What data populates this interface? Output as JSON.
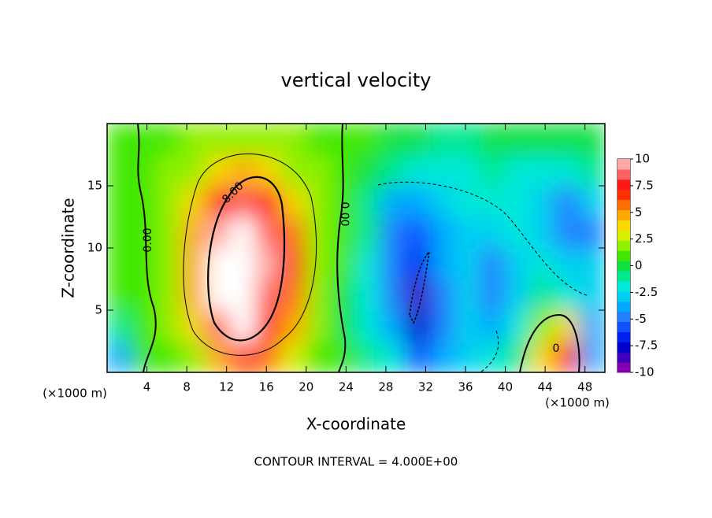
{
  "chart_data": {
    "type": "heatmap",
    "title": "vertical velocity",
    "x_label": "X-coordinate",
    "y_label": "Z-coordinate",
    "x_unit_left": "(×1000 m)",
    "x_unit_right": "(×1000 m)",
    "footer": "CONTOUR INTERVAL = 4.000E+00",
    "contour_labels": [
      "0.00",
      "8.00",
      "0.00",
      "0"
    ],
    "x": [
      1.25,
      3.75,
      6.25,
      8.75,
      11.25,
      13.75,
      16.25,
      18.75,
      21.25,
      23.75,
      26.25,
      28.75,
      31.25,
      33.75,
      36.25,
      38.75,
      41.25,
      43.75,
      46.25,
      48.75
    ],
    "y": [
      1.25,
      3.75,
      6.25,
      8.75,
      11.25,
      13.75,
      16.25,
      18.75
    ],
    "values": [
      [
        -4,
        0.5,
        1,
        2,
        5,
        7,
        6,
        3,
        1,
        0.5,
        -1,
        -2,
        -6,
        -4,
        -3,
        -2,
        -1,
        4,
        8,
        -4
      ],
      [
        -1,
        0.5,
        1.5,
        4,
        9,
        11,
        8,
        5,
        1.5,
        0,
        -2,
        -4,
        -8,
        -5,
        -3,
        -4,
        -2,
        2,
        4,
        -4
      ],
      [
        0.5,
        1,
        1.5,
        5,
        11,
        12,
        9,
        6,
        1.5,
        0,
        -2,
        -5,
        -9,
        -5,
        -3,
        -5,
        -3,
        -1,
        -2,
        -3
      ],
      [
        0.5,
        1,
        1.5,
        5,
        11,
        12,
        10,
        7,
        2,
        0.5,
        -2,
        -5,
        -7,
        -4,
        -3,
        -5,
        -3,
        -2,
        -3,
        -3
      ],
      [
        0.5,
        1,
        1.5,
        5,
        10,
        12,
        9,
        6,
        2,
        0.5,
        -1,
        -5,
        -6,
        -4,
        -3,
        -3,
        -2,
        -3,
        -5,
        -5
      ],
      [
        0.5,
        1,
        1.5,
        4,
        8,
        9,
        8,
        4,
        1.5,
        0.5,
        -1,
        -4,
        -4,
        -3,
        -2,
        -2,
        -2,
        -3,
        -5,
        -3
      ],
      [
        1,
        1,
        1.5,
        2,
        4,
        5,
        4,
        2,
        1.5,
        0.5,
        -0.5,
        -1,
        -2,
        -2,
        -2,
        -1.5,
        -2,
        -2,
        -2,
        -1
      ],
      [
        1,
        1,
        1,
        1.5,
        2,
        2,
        2,
        1.5,
        1,
        0.5,
        0.5,
        0,
        -0.5,
        -1,
        -1,
        -0.5,
        -0.5,
        -0.5,
        0,
        0
      ]
    ],
    "xlim": [
      0,
      50
    ],
    "ylim": [
      0,
      20
    ],
    "xticks": [
      4,
      8,
      12,
      16,
      20,
      24,
      28,
      32,
      36,
      40,
      44,
      48
    ],
    "yticks": [
      5,
      10,
      15
    ],
    "clim": [
      -10,
      10
    ],
    "cticks": [
      10,
      7.5,
      5,
      2.5,
      0,
      -2.5,
      -5,
      -7.5,
      -10
    ],
    "colors": [
      "#8000b0",
      "#4000c0",
      "#0000c8",
      "#0020f0",
      "#1050ff",
      "#2080ff",
      "#00a8ff",
      "#00d0f0",
      "#00e8d8",
      "#00e890",
      "#10e040",
      "#40e800",
      "#90f000",
      "#d8f000",
      "#f8d800",
      "#ffa800",
      "#ff7000",
      "#ff3000",
      "#ff1818",
      "#ff6060",
      "#ffa8a8"
    ],
    "over_color": "#ffffff"
  }
}
